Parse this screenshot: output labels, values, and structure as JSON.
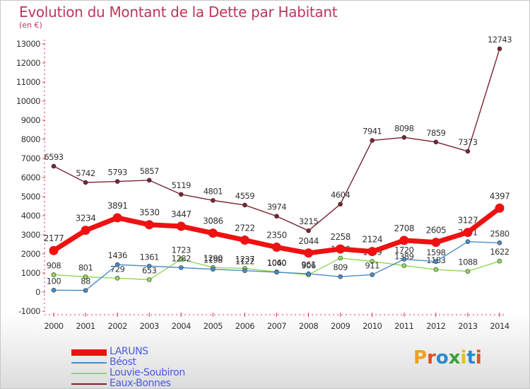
{
  "title": "Evolution du Montant de la Dette par Habitant",
  "unit": "(en €)",
  "logo": {
    "text": "Proxiti",
    "colors": [
      "#f0a020",
      "#e05020",
      "#2a8ad0",
      "#3aa040",
      "#e0c020",
      "#2a8ad0",
      "#e05020"
    ]
  },
  "chart_data": {
    "type": "line",
    "x": [
      2000,
      2001,
      2002,
      2003,
      2004,
      2005,
      2006,
      2007,
      2008,
      2009,
      2010,
      2011,
      2012,
      2013,
      2014
    ],
    "ylim": [
      -1000,
      13000
    ],
    "yticks": [
      -1000,
      0,
      1000,
      2000,
      3000,
      4000,
      5000,
      6000,
      7000,
      8000,
      9000,
      10000,
      11000,
      12000,
      13000
    ],
    "grid": false,
    "legend_position": "bottom-left",
    "series": [
      {
        "name": "Eaux-Bonnes",
        "color": "#7a2430",
        "width": 1.4,
        "values": [
          6593,
          5742,
          5793,
          5857,
          5119,
          4801,
          4559,
          3974,
          3215,
          4604,
          7941,
          8098,
          7859,
          7373,
          12743
        ]
      },
      {
        "name": "Louvie-Soubiron",
        "color": "#8fd85a",
        "width": 1.4,
        "values": [
          908,
          801,
          729,
          653,
          1723,
          1290,
          1237,
          1060,
          906,
          1780,
          1609,
          1389,
          1183,
          1088,
          1622
        ]
      },
      {
        "name": "Béost",
        "color": "#4a8cc8",
        "width": 1.4,
        "values": [
          100,
          88,
          1436,
          1361,
          1282,
          1198,
          1122,
          1040,
          961,
          809,
          911,
          1720,
          1598,
          2641,
          2580
        ]
      },
      {
        "name": "LARUNS",
        "color": "#ee1111",
        "width": 7,
        "values": [
          2177,
          3234,
          3891,
          3530,
          3447,
          3086,
          2722,
          2350,
          2044,
          2258,
          2124,
          2708,
          2605,
          3127,
          4397
        ]
      }
    ],
    "legend_order": [
      "LARUNS",
      "Béost",
      "Louvie-Soubiron",
      "Eaux-Bonnes"
    ]
  }
}
